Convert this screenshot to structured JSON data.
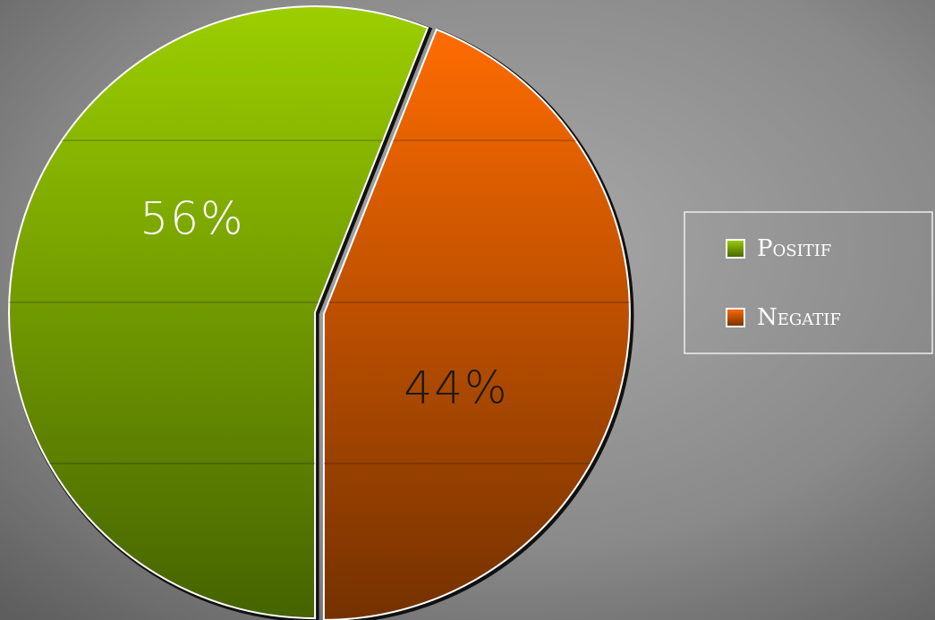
{
  "chart_data": {
    "type": "pie",
    "categories": [
      "Positif",
      "Negatif"
    ],
    "values": [
      56,
      44
    ],
    "value_labels": [
      "56%",
      "44%"
    ],
    "series": [
      {
        "name": "Positif",
        "color": "#8cbf00"
      },
      {
        "name": "Negatif",
        "color": "#f06000"
      }
    ],
    "legend": "right"
  }
}
